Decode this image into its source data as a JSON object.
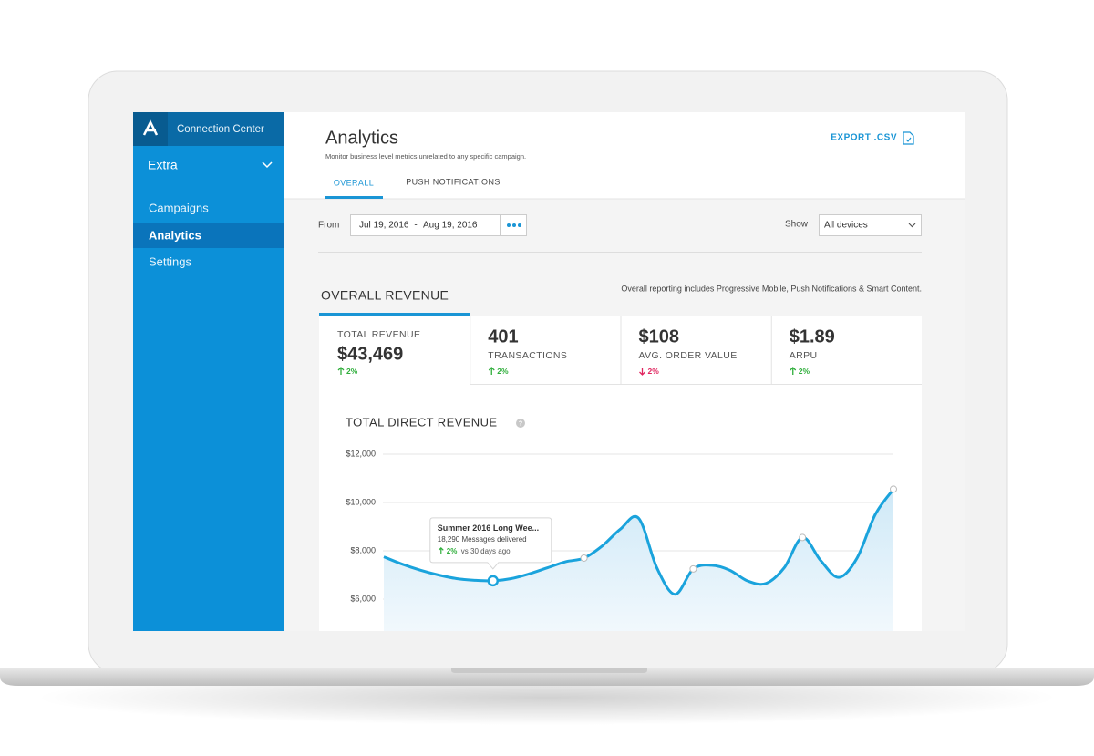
{
  "sidebar": {
    "app_name": "Connection Center",
    "workspace": "Extra",
    "menu": [
      "Campaigns",
      "Analytics",
      "Settings"
    ],
    "active_menu": 1
  },
  "header": {
    "title": "Analytics",
    "subtitle": "Monitor business level metrics unrelated to any specific campaign.",
    "export": "EXPORT .CSV",
    "tabs": [
      "OVERALL",
      "PUSH NOTIFICATIONS"
    ],
    "active_tab": 0
  },
  "filters": {
    "from_label": "From",
    "start_date": "Jul 19, 2016",
    "separator": "-",
    "end_date": "Aug 19, 2016",
    "show_label": "Show",
    "device": "All devices"
  },
  "revenue": {
    "title": "OVERALL REVENUE",
    "note": "Overall reporting includes Progressive Mobile, Push Notifications & Smart Content.",
    "metrics": [
      {
        "label": "TOTAL REVENUE",
        "value": "$43,469",
        "change": "2%",
        "trend": "up"
      },
      {
        "label": "TRANSACTIONS",
        "value": "401",
        "change": "2%",
        "trend": "up"
      },
      {
        "label": "AVG. ORDER VALUE",
        "value": "$108",
        "change": "2%",
        "trend": "down"
      },
      {
        "label": "ARPU",
        "value": "$1.89",
        "change": "2%",
        "trend": "up"
      }
    ]
  },
  "chart_data": {
    "type": "line",
    "title": "TOTAL DIRECT REVENUE",
    "values": [
      7750,
      7450,
      7200,
      7000,
      6850,
      6780,
      6760,
      6850,
      7050,
      7300,
      7550,
      7700,
      8200,
      8900,
      9350,
      7300,
      6200,
      7250,
      7400,
      7200,
      6750,
      6650,
      7300,
      8550,
      7600,
      6900,
      7700,
      9500,
      10550
    ],
    "color": "#1aa3dc",
    "ylim": [
      5000,
      12000
    ],
    "yticks": [
      {
        "value": 6000,
        "label": "$6,000"
      },
      {
        "value": 8000,
        "label": "$8,000"
      },
      {
        "value": 10000,
        "label": "$10,000"
      },
      {
        "value": 12000,
        "label": "$12,000"
      }
    ],
    "grid": true,
    "tooltip": {
      "title": "Summer 2016 Long Wee...",
      "detail": "18,290 Messages delivered",
      "change": "2%",
      "comparison": "vs 30 days ago"
    }
  }
}
